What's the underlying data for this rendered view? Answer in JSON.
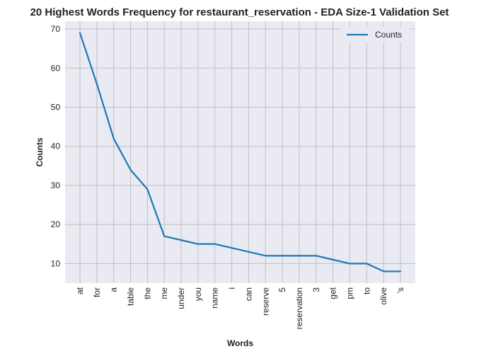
{
  "chart_data": {
    "type": "line",
    "title": "20 Highest Words Frequency for restaurant_reservation - EDA Size-1 Validation Set",
    "xlabel": "Words",
    "ylabel": "Counts",
    "categories": [
      "at",
      "for",
      "a",
      "table",
      "the",
      "me",
      "under",
      "you",
      "name",
      "i",
      "can",
      "reserve",
      "5",
      "reservation",
      "3",
      "get",
      "pm",
      "to",
      "olive",
      "'s"
    ],
    "series": [
      {
        "name": "Counts",
        "values": [
          69,
          56,
          42,
          34,
          29,
          17,
          16,
          15,
          15,
          14,
          13,
          12,
          12,
          12,
          12,
          11,
          10,
          10,
          8,
          8
        ]
      }
    ],
    "ylim": [
      5,
      72
    ],
    "yticks": [
      10,
      20,
      30,
      40,
      50,
      60,
      70
    ],
    "grid": true,
    "legend": "top-right",
    "colors": {
      "line": "#1f77b4",
      "background": "#eaeaf2",
      "grid": "#c0c0c0"
    }
  }
}
